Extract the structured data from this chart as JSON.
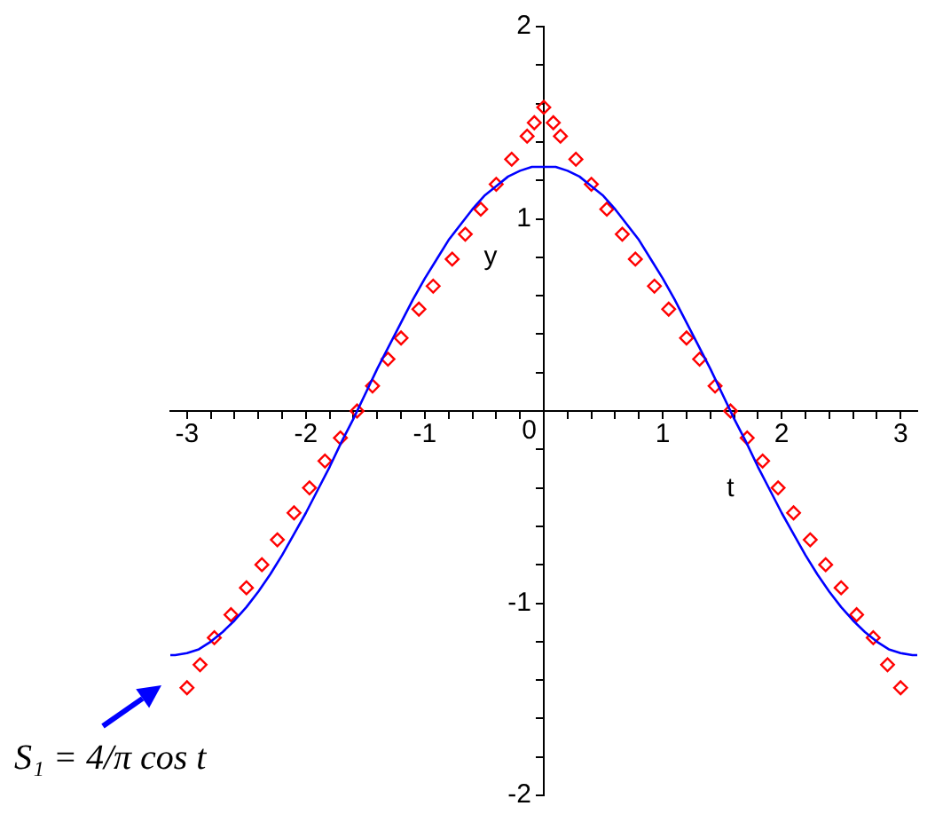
{
  "chart_data": {
    "type": "line",
    "xlabel": "t",
    "ylabel": "y",
    "xlim": [
      -3.14,
      3.14
    ],
    "ylim": [
      -2,
      2
    ],
    "xticks": [
      -3,
      {
        "value": -2.8,
        "label": null
      },
      {
        "value": -2.6,
        "label": null
      },
      {
        "value": -2.4,
        "label": null
      },
      {
        "value": -2.2,
        "label": null
      },
      -2,
      {
        "value": -1.8,
        "label": null
      },
      {
        "value": -1.6,
        "label": null
      },
      {
        "value": -1.4,
        "label": null
      },
      {
        "value": -1.2,
        "label": null
      },
      -1,
      {
        "value": -0.8,
        "label": null
      },
      {
        "value": -0.6,
        "label": null
      },
      {
        "value": -0.4,
        "label": null
      },
      {
        "value": -0.2,
        "label": null
      },
      0,
      {
        "value": 0.2,
        "label": null
      },
      {
        "value": 0.4,
        "label": null
      },
      {
        "value": 0.6,
        "label": null
      },
      {
        "value": 0.8,
        "label": null
      },
      1,
      {
        "value": 1.2,
        "label": null
      },
      {
        "value": 1.4,
        "label": null
      },
      {
        "value": 1.6,
        "label": null
      },
      {
        "value": 1.8,
        "label": null
      },
      2,
      {
        "value": 2.2,
        "label": null
      },
      {
        "value": 2.4,
        "label": null
      },
      {
        "value": 2.6,
        "label": null
      },
      {
        "value": 2.8,
        "label": null
      },
      3
    ],
    "yticks": [
      -2,
      {
        "value": -1.8,
        "label": null
      },
      {
        "value": -1.6,
        "label": null
      },
      {
        "value": -1.4,
        "label": null
      },
      {
        "value": -1.2,
        "label": null
      },
      -1,
      {
        "value": -0.8,
        "label": null
      },
      {
        "value": -0.6,
        "label": null
      },
      {
        "value": -0.4,
        "label": null
      },
      {
        "value": -0.2,
        "label": null
      },
      {
        "value": 0,
        "label": null
      },
      {
        "value": 0.2,
        "label": null
      },
      {
        "value": 0.4,
        "label": null
      },
      {
        "value": 0.6,
        "label": null
      },
      {
        "value": 0.8,
        "label": null
      },
      1,
      {
        "value": 1.2,
        "label": null
      },
      {
        "value": 1.4,
        "label": null
      },
      {
        "value": 1.6,
        "label": null
      },
      {
        "value": 1.8,
        "label": null
      },
      2
    ],
    "series": [
      {
        "color": "#0000ff",
        "x": [
          -3.14,
          -3.1,
          -3.0,
          -2.9,
          -2.8,
          -2.7,
          -2.6,
          -2.5,
          -2.4,
          -2.3,
          -2.2,
          -2.1,
          -2.0,
          -1.9,
          -1.8,
          -1.7,
          -1.6,
          -1.5,
          -1.4,
          -1.3,
          -1.2,
          -1.1,
          -1.0,
          -0.9,
          -0.8,
          -0.7,
          -0.6,
          -0.5,
          -0.4,
          -0.3,
          -0.2,
          -0.1,
          0,
          0.1,
          0.2,
          0.3,
          0.4,
          0.5,
          0.6,
          0.7,
          0.8,
          0.9,
          1.0,
          1.1,
          1.2,
          1.3,
          1.4,
          1.5,
          1.6,
          1.7,
          1.8,
          1.9,
          2.0,
          2.1,
          2.2,
          2.3,
          2.4,
          2.5,
          2.6,
          2.7,
          2.8,
          2.9,
          3.0,
          3.1,
          3.14
        ],
        "values": [
          -1.27,
          -1.27,
          -1.26,
          -1.24,
          -1.2,
          -1.15,
          -1.09,
          -1.02,
          -0.94,
          -0.85,
          -0.75,
          -0.64,
          -0.53,
          -0.41,
          -0.29,
          -0.16,
          -0.04,
          0.09,
          0.22,
          0.34,
          0.46,
          0.58,
          0.69,
          0.79,
          0.89,
          0.97,
          1.05,
          1.12,
          1.17,
          1.22,
          1.25,
          1.27,
          1.27,
          1.27,
          1.25,
          1.22,
          1.17,
          1.12,
          1.05,
          0.97,
          0.89,
          0.79,
          0.69,
          0.58,
          0.46,
          0.34,
          0.22,
          0.09,
          -0.04,
          -0.16,
          -0.29,
          -0.41,
          -0.53,
          -0.64,
          -0.75,
          -0.85,
          -0.94,
          -1.02,
          -1.09,
          -1.15,
          -1.2,
          -1.24,
          -1.26,
          -1.27,
          -1.27
        ]
      },
      {
        "type": "scatter",
        "color": "#ff0000",
        "marker": "diamond",
        "x": [
          -3.0,
          -2.89,
          -2.77,
          -2.63,
          -2.5,
          -2.37,
          -2.24,
          -2.1,
          -1.97,
          -1.84,
          -1.71,
          -1.57,
          -1.44,
          -1.31,
          -1.2,
          -1.05,
          -0.93,
          -0.77,
          -0.66,
          -0.53,
          -0.4,
          -0.27,
          -0.14,
          -0.08,
          0,
          0.08,
          0.14,
          0.27,
          0.4,
          0.53,
          0.66,
          0.77,
          0.93,
          1.05,
          1.2,
          1.31,
          1.44,
          1.57,
          1.71,
          1.84,
          1.97,
          2.1,
          2.24,
          2.37,
          2.5,
          2.63,
          2.77,
          2.89,
          3.0
        ],
        "values": [
          -1.44,
          -1.32,
          -1.18,
          -1.06,
          -0.92,
          -0.8,
          -0.67,
          -0.53,
          -0.4,
          -0.26,
          -0.14,
          0,
          0.13,
          0.27,
          0.38,
          0.53,
          0.65,
          0.79,
          0.92,
          1.05,
          1.18,
          1.31,
          1.43,
          1.5,
          1.58,
          1.5,
          1.43,
          1.31,
          1.18,
          1.05,
          0.92,
          0.79,
          0.65,
          0.53,
          0.38,
          0.27,
          0.13,
          0,
          -0.14,
          -0.26,
          -0.4,
          -0.53,
          -0.67,
          -0.8,
          -0.92,
          -1.06,
          -1.18,
          -1.32,
          -1.44
        ]
      }
    ],
    "annotations": [
      {
        "text": "S₁ = 4/π cos t",
        "x": -3.14,
        "y": -1.27
      }
    ]
  }
}
